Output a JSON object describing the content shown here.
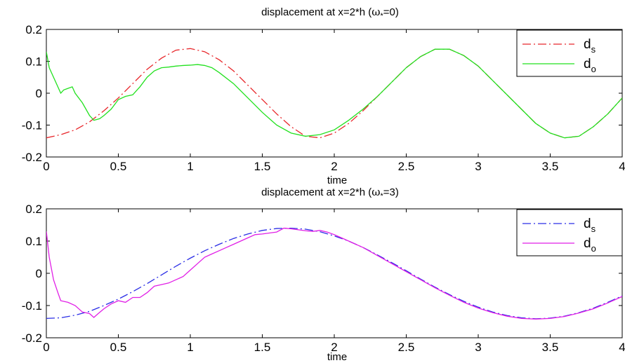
{
  "chart_data": [
    {
      "type": "line",
      "title": "displacement at x=2*h (ω*=0)",
      "title_parts": {
        "prefix": "displacement at x=2*h (",
        "symbol": "ω",
        "subscript": "*",
        "suffix": "=0)"
      },
      "xlabel": "time",
      "ylabel": "",
      "xlim": [
        0,
        4
      ],
      "ylim": [
        -0.2,
        0.2
      ],
      "xticks": [
        "0",
        "0.5",
        "1",
        "1.5",
        "2",
        "2.5",
        "3",
        "3.5",
        "4"
      ],
      "yticks": [
        "0.2",
        "0.1",
        "0",
        "-0.1",
        "-0.2"
      ],
      "grid": false,
      "legend_position": "top-right",
      "series": [
        {
          "name": "ds",
          "label_main": "d",
          "label_sub": "s",
          "color": "#e8262a",
          "style": "dash-dot",
          "x": [
            0,
            0.1,
            0.2,
            0.3,
            0.4,
            0.5,
            0.6,
            0.7,
            0.8,
            0.9,
            1.0,
            1.1,
            1.2,
            1.3,
            1.4,
            1.5,
            1.6,
            1.7,
            1.8,
            1.9,
            2.0,
            2.1,
            2.2,
            2.3,
            2.4,
            2.5,
            2.6,
            2.7,
            2.8,
            2.9,
            3.0,
            3.1,
            3.2,
            3.3,
            3.4,
            3.5,
            3.6,
            3.7,
            3.8,
            3.9,
            4.0
          ],
          "y": [
            -0.14,
            -0.13,
            -0.115,
            -0.09,
            -0.055,
            -0.015,
            0.03,
            0.075,
            0.11,
            0.135,
            0.14,
            0.13,
            0.105,
            0.07,
            0.025,
            -0.02,
            -0.065,
            -0.105,
            -0.135,
            -0.14,
            -0.125,
            -0.095,
            -0.055,
            -0.01,
            0.035,
            0.08,
            0.115,
            0.138,
            0.138,
            0.118,
            0.085,
            0.04,
            -0.005,
            -0.05,
            -0.095,
            -0.125,
            -0.14,
            -0.135,
            -0.105,
            -0.065,
            -0.015
          ]
        },
        {
          "name": "do",
          "label_main": "d",
          "label_sub": "o",
          "color": "#22e11f",
          "style": "solid",
          "x": [
            0,
            0.02,
            0.05,
            0.08,
            0.1,
            0.12,
            0.15,
            0.18,
            0.2,
            0.25,
            0.3,
            0.33,
            0.37,
            0.4,
            0.45,
            0.5,
            0.55,
            0.6,
            0.65,
            0.7,
            0.75,
            0.8,
            0.85,
            0.9,
            0.95,
            1.0,
            1.05,
            1.1,
            1.15,
            1.2,
            1.3,
            1.4,
            1.5,
            1.6,
            1.7,
            1.8,
            1.9,
            2.0,
            2.1,
            2.2,
            2.3,
            2.4,
            2.5,
            2.6,
            2.7,
            2.8,
            2.9,
            3.0,
            3.1,
            3.2,
            3.3,
            3.4,
            3.5,
            3.6,
            3.7,
            3.8,
            3.9,
            4.0
          ],
          "y": [
            0.13,
            0.08,
            0.05,
            0.02,
            0.0,
            0.01,
            0.015,
            0.02,
            0.0,
            -0.03,
            -0.07,
            -0.085,
            -0.08,
            -0.07,
            -0.05,
            -0.02,
            -0.01,
            -0.005,
            0.02,
            0.05,
            0.07,
            0.08,
            0.082,
            0.085,
            0.087,
            0.088,
            0.09,
            0.087,
            0.08,
            0.065,
            0.03,
            -0.015,
            -0.06,
            -0.1,
            -0.125,
            -0.135,
            -0.13,
            -0.115,
            -0.085,
            -0.05,
            -0.01,
            0.035,
            0.08,
            0.115,
            0.138,
            0.138,
            0.118,
            0.085,
            0.04,
            -0.005,
            -0.05,
            -0.095,
            -0.125,
            -0.14,
            -0.135,
            -0.105,
            -0.065,
            -0.015
          ]
        }
      ]
    },
    {
      "type": "line",
      "title": "displacement at x=2*h (ω*=3)",
      "title_parts": {
        "prefix": "displacement at x=2*h (",
        "symbol": "ω",
        "subscript": "*",
        "suffix": "=3)"
      },
      "xlabel": "time",
      "ylabel": "",
      "xlim": [
        0,
        4
      ],
      "ylim": [
        -0.2,
        0.2
      ],
      "xticks": [
        "0",
        "0.5",
        "1",
        "1.5",
        "2",
        "2.5",
        "3",
        "3.5",
        "4"
      ],
      "yticks": [
        "0.2",
        "0.1",
        "0",
        "-0.1",
        "-0.2"
      ],
      "grid": false,
      "legend_position": "top-right",
      "series": [
        {
          "name": "ds",
          "label_main": "d",
          "label_sub": "s",
          "color": "#2b2ee6",
          "style": "dash-dot",
          "x": [
            0,
            0.1,
            0.2,
            0.3,
            0.4,
            0.5,
            0.6,
            0.7,
            0.8,
            0.9,
            1.0,
            1.1,
            1.2,
            1.3,
            1.4,
            1.5,
            1.6,
            1.7,
            1.8,
            1.9,
            2.0,
            2.1,
            2.2,
            2.3,
            2.4,
            2.5,
            2.6,
            2.7,
            2.8,
            2.9,
            3.0,
            3.1,
            3.2,
            3.3,
            3.4,
            3.5,
            3.6,
            3.7,
            3.8,
            3.9,
            4.0
          ],
          "y": [
            -0.14,
            -0.138,
            -0.13,
            -0.118,
            -0.1,
            -0.08,
            -0.057,
            -0.032,
            -0.005,
            0.022,
            0.047,
            0.07,
            0.09,
            0.108,
            0.122,
            0.133,
            0.139,
            0.14,
            0.137,
            0.129,
            0.116,
            0.1,
            0.08,
            0.057,
            0.033,
            0.008,
            -0.018,
            -0.043,
            -0.066,
            -0.087,
            -0.105,
            -0.12,
            -0.131,
            -0.138,
            -0.141,
            -0.139,
            -0.133,
            -0.122,
            -0.108,
            -0.09,
            -0.07
          ]
        },
        {
          "name": "do",
          "label_main": "d",
          "label_sub": "o",
          "color": "#e11fe6",
          "style": "solid",
          "x": [
            0,
            0.02,
            0.05,
            0.08,
            0.1,
            0.15,
            0.2,
            0.25,
            0.3,
            0.33,
            0.36,
            0.4,
            0.45,
            0.5,
            0.55,
            0.6,
            0.65,
            0.7,
            0.75,
            0.8,
            0.85,
            0.9,
            0.95,
            1.0,
            1.05,
            1.1,
            1.15,
            1.2,
            1.25,
            1.3,
            1.35,
            1.4,
            1.45,
            1.5,
            1.55,
            1.6,
            1.65,
            1.7,
            1.75,
            1.8,
            1.85,
            1.9,
            1.95,
            2.0,
            2.05,
            2.1,
            2.2,
            2.3,
            2.4,
            2.5,
            2.6,
            2.7,
            2.8,
            2.9,
            3.0,
            3.1,
            3.2,
            3.3,
            3.4,
            3.5,
            3.6,
            3.7,
            3.8,
            3.9,
            4.0
          ],
          "y": [
            0.13,
            0.05,
            -0.02,
            -0.06,
            -0.085,
            -0.09,
            -0.1,
            -0.12,
            -0.125,
            -0.137,
            -0.125,
            -0.11,
            -0.095,
            -0.085,
            -0.09,
            -0.075,
            -0.075,
            -0.06,
            -0.04,
            -0.035,
            -0.03,
            -0.02,
            -0.01,
            0.01,
            0.03,
            0.05,
            0.06,
            0.07,
            0.08,
            0.09,
            0.1,
            0.11,
            0.12,
            0.122,
            0.125,
            0.128,
            0.14,
            0.138,
            0.135,
            0.132,
            0.13,
            0.133,
            0.128,
            0.12,
            0.11,
            0.1,
            0.08,
            0.055,
            0.03,
            0.005,
            -0.02,
            -0.045,
            -0.068,
            -0.09,
            -0.108,
            -0.122,
            -0.133,
            -0.14,
            -0.142,
            -0.14,
            -0.134,
            -0.123,
            -0.11,
            -0.092,
            -0.072
          ]
        }
      ]
    }
  ]
}
